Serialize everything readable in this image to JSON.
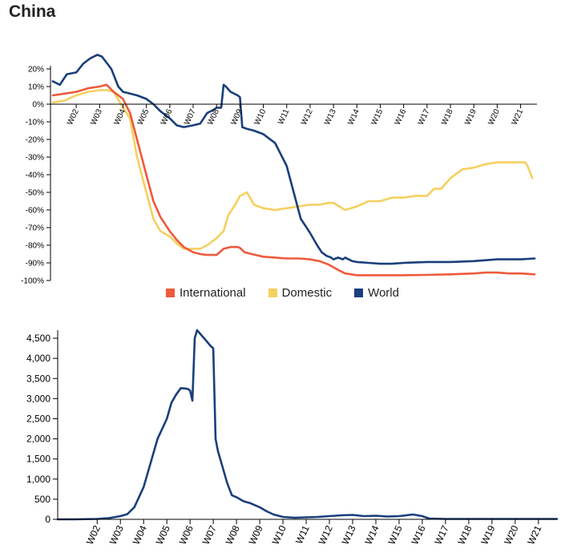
{
  "page": {
    "title": "China"
  },
  "chart_data": [
    {
      "type": "line",
      "colors": {
        "International": "#ee5a3c",
        "Domestic": "#f5d060",
        "World": "#1a3f7a"
      },
      "ylim": [
        -100,
        25
      ],
      "yticks": [
        "20%",
        "10%",
        "0%",
        "-10%",
        "-20%",
        "-30%",
        "-40%",
        "-50%",
        "-60%",
        "-70%",
        "-80%",
        "-90%",
        "-100%"
      ],
      "ytick_values": [
        20,
        10,
        0,
        -10,
        -20,
        -30,
        -40,
        -50,
        -60,
        -70,
        -80,
        -90,
        -100
      ],
      "xlim": [
        0.9,
        21.7
      ],
      "xticks": [
        "W02",
        "W03",
        "W04",
        "W05",
        "W06",
        "W07",
        "W08",
        "W09",
        "W10",
        "W11",
        "W12",
        "W13",
        "W14",
        "W15",
        "W16",
        "W17",
        "W18",
        "W19",
        "W20",
        "W21"
      ],
      "xtick_values": [
        2,
        3,
        4,
        5,
        6,
        7,
        8,
        9,
        10,
        11,
        12,
        13,
        14,
        15,
        16,
        17,
        18,
        19,
        20,
        21
      ],
      "legend": [
        "International",
        "Domestic",
        "World"
      ],
      "series": [
        {
          "name": "International",
          "x": [
            1.0,
            1.5,
            2.0,
            2.5,
            3.0,
            3.3,
            3.6,
            4.0,
            4.3,
            4.6,
            5.0,
            5.3,
            5.6,
            6.0,
            6.3,
            6.6,
            7.0,
            7.3,
            7.6,
            8.0,
            8.3,
            8.6,
            8.9,
            9.0,
            9.2,
            9.5,
            10.0,
            10.5,
            11.0,
            11.5,
            12.0,
            12.4,
            12.8,
            13.2,
            13.5,
            14.0,
            15.0,
            16.0,
            17.0,
            18.0,
            19.0,
            19.5,
            20.0,
            20.5,
            21.0,
            21.6
          ],
          "y": [
            5,
            6,
            7,
            9,
            10,
            11,
            7,
            3,
            -5,
            -20,
            -40,
            -55,
            -64,
            -72,
            -77,
            -81,
            -84,
            -85,
            -85.5,
            -85.5,
            -82,
            -81,
            -81,
            -81.5,
            -84,
            -85,
            -86.5,
            -87,
            -87.5,
            -87.5,
            -88,
            -89,
            -91,
            -94,
            -96,
            -97,
            -97,
            -97,
            -96.8,
            -96.5,
            -96,
            -95.5,
            -95.5,
            -96,
            -96,
            -96.5
          ]
        },
        {
          "name": "Domestic",
          "x": [
            1.0,
            1.5,
            2.0,
            2.5,
            3.0,
            3.3,
            3.6,
            4.0,
            4.3,
            4.6,
            5.0,
            5.3,
            5.6,
            6.0,
            6.3,
            6.6,
            7.0,
            7.3,
            7.6,
            8.0,
            8.3,
            8.5,
            8.8,
            9.0,
            9.3,
            9.6,
            10.0,
            10.5,
            11.0,
            11.5,
            12.0,
            12.4,
            12.8,
            13.0,
            13.5,
            14.0,
            14.5,
            15.0,
            15.5,
            16.0,
            16.5,
            17.0,
            17.3,
            17.6,
            18.0,
            18.5,
            19.0,
            19.5,
            20.0,
            20.5,
            21.0,
            21.2,
            21.3,
            21.5
          ],
          "y": [
            1,
            2,
            5,
            7,
            8,
            8,
            7,
            -2,
            -8,
            -30,
            -50,
            -65,
            -72,
            -75,
            -79,
            -82,
            -82,
            -82,
            -80,
            -76,
            -72,
            -63,
            -57,
            -52,
            -50,
            -57,
            -59,
            -60,
            -59,
            -58,
            -57,
            -57,
            -56,
            -56,
            -60,
            -58,
            -55,
            -55,
            -53,
            -53,
            -52,
            -52,
            -48,
            -48,
            -42,
            -37,
            -36,
            -34,
            -33,
            -33,
            -33,
            -33,
            -35,
            -42
          ]
        },
        {
          "name": "World",
          "x": [
            1.0,
            1.3,
            1.6,
            2.0,
            2.3,
            2.6,
            2.9,
            3.1,
            3.5,
            3.8,
            4.0,
            4.3,
            4.6,
            5.0,
            5.3,
            5.6,
            6.0,
            6.3,
            6.6,
            7.0,
            7.3,
            7.6,
            7.9,
            8.0,
            8.2,
            8.3,
            8.4,
            8.6,
            8.9,
            9.0,
            9.1,
            9.3,
            9.6,
            10.0,
            10.5,
            11.0,
            11.3,
            11.6,
            12.0,
            12.3,
            12.5,
            12.7,
            12.9,
            13.0,
            13.2,
            13.4,
            13.5,
            13.8,
            14.0,
            14.5,
            15.0,
            15.5,
            16.0,
            17.0,
            18.0,
            19.0,
            20.0,
            21.0,
            21.6
          ],
          "y": [
            13,
            11,
            17,
            18,
            23,
            26,
            28,
            27,
            20,
            10,
            7,
            6,
            5,
            3,
            0,
            -4,
            -8,
            -12,
            -13,
            -12,
            -11,
            -5,
            -3,
            -2,
            -2,
            11,
            10,
            7,
            5,
            4,
            -13,
            -14,
            -15,
            -17,
            -22,
            -35,
            -50,
            -65,
            -73,
            -80,
            -84,
            -86,
            -87,
            -88,
            -87,
            -88,
            -87,
            -89,
            -89.5,
            -90,
            -90.5,
            -90.5,
            -90,
            -89.5,
            -89.5,
            -89,
            -88,
            -88,
            -87.5
          ]
        }
      ]
    },
    {
      "type": "line",
      "color": "#1a3f7a",
      "ylim": [
        0,
        4700
      ],
      "yticks": [
        "4,500",
        "4,000",
        "3,500",
        "3,000",
        "2,500",
        "2,000",
        "1,500",
        "1,000",
        "500",
        "0"
      ],
      "ytick_values": [
        4500,
        4000,
        3500,
        3000,
        2500,
        2000,
        1500,
        1000,
        500,
        0
      ],
      "xlim": [
        0.3,
        21.8
      ],
      "xticks": [
        "W02",
        "W03",
        "W04",
        "W05",
        "W06",
        "W07",
        "W08",
        "W09",
        "W10",
        "W11",
        "W12",
        "W13",
        "W14",
        "W15",
        "W16",
        "W17",
        "W18",
        "W19",
        "W20",
        "W21"
      ],
      "xtick_values": [
        2,
        3,
        4,
        5,
        6,
        7,
        8,
        9,
        10,
        11,
        12,
        13,
        14,
        15,
        16,
        17,
        18,
        19,
        20,
        21
      ],
      "series": [
        {
          "x": [
            0.3,
            1.0,
            2.0,
            2.5,
            3.0,
            3.3,
            3.6,
            4.0,
            4.3,
            4.6,
            5.0,
            5.2,
            5.4,
            5.6,
            5.8,
            5.9,
            6.0,
            6.1,
            6.2,
            6.3,
            6.6,
            6.9,
            7.0,
            7.1,
            7.2,
            7.4,
            7.6,
            7.8,
            8.0,
            8.3,
            8.6,
            9.0,
            9.3,
            9.6,
            10.0,
            10.5,
            11.0,
            11.5,
            12.0,
            12.5,
            13.0,
            13.5,
            14.0,
            14.5,
            15.0,
            15.3,
            15.6,
            16.0,
            16.3,
            17.0,
            18.0,
            19.0,
            20.0,
            21.0,
            21.8
          ],
          "y": [
            0,
            0,
            10,
            30,
            80,
            130,
            300,
            800,
            1400,
            2000,
            2500,
            2900,
            3100,
            3260,
            3250,
            3240,
            3200,
            2950,
            4500,
            4700,
            4500,
            4300,
            4250,
            2000,
            1700,
            1300,
            900,
            600,
            550,
            450,
            400,
            300,
            200,
            120,
            60,
            40,
            50,
            60,
            80,
            100,
            110,
            80,
            90,
            70,
            80,
            100,
            120,
            80,
            20,
            10,
            10,
            10,
            10,
            10,
            10
          ]
        }
      ]
    }
  ]
}
